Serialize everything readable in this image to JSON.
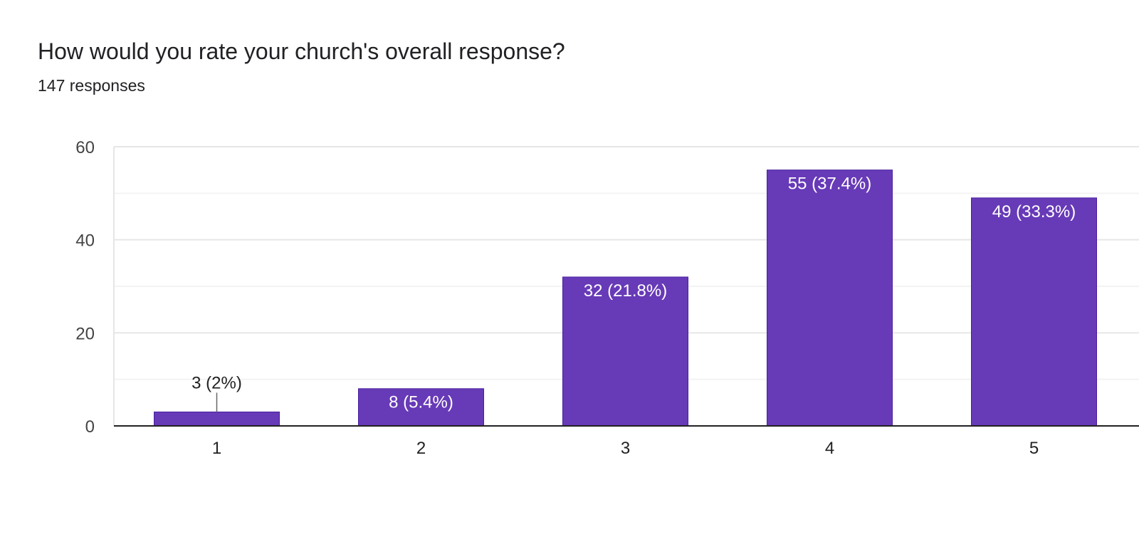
{
  "chart_data": {
    "type": "bar",
    "title": "How would you rate your church's overall response?",
    "subtitle": "147 responses",
    "categories": [
      "1",
      "2",
      "3",
      "4",
      "5"
    ],
    "values": [
      3,
      8,
      32,
      55,
      49
    ],
    "data_labels": [
      "3 (2%)",
      "8 (5.4%)",
      "32 (21.8%)",
      "55 (37.4%)",
      "49 (33.3%)"
    ],
    "ylim": [
      0,
      60
    ],
    "yticks": [
      0,
      20,
      40,
      60
    ],
    "xlabel": "",
    "ylabel": "",
    "grid": true,
    "colors": {
      "bar": "#673ab7",
      "bar_border": "#4a1fa0",
      "grid": "#e6e6e6",
      "minor_grid": "#f3f3f3",
      "axis": "#222222",
      "label_inside": "#ffffff",
      "label_outside": "#222222"
    }
  }
}
